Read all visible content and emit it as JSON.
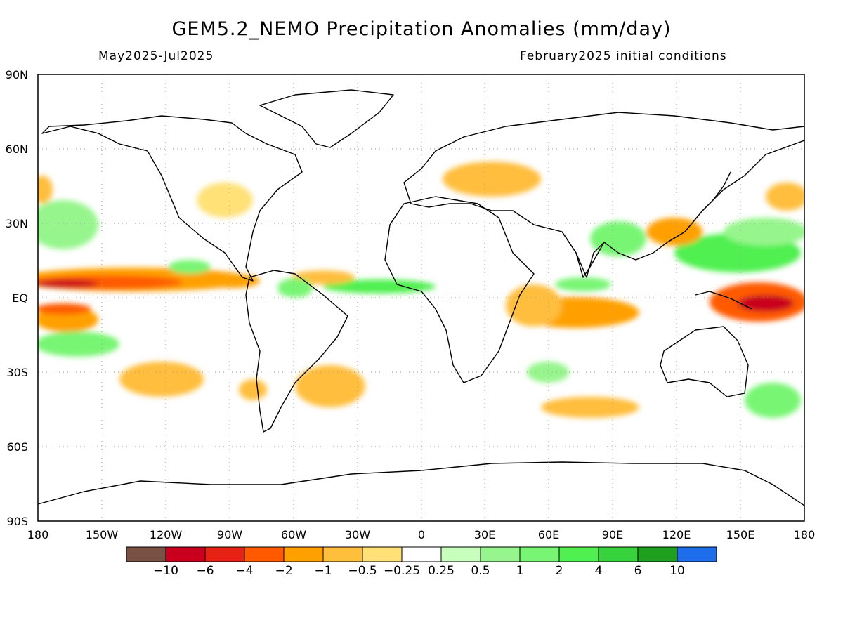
{
  "header": {
    "title": "GEM5.2_NEMO Precipitation Anomalies (mm/day)",
    "period": "May2025-Jul2025",
    "init": "February2025 initial conditions"
  },
  "map": {
    "lat_ticks": [
      "90N",
      "60N",
      "30N",
      "EQ",
      "30S",
      "60S",
      "90S"
    ],
    "lon_ticks": [
      "180",
      "150W",
      "120W",
      "90W",
      "60W",
      "30W",
      "0",
      "30E",
      "60E",
      "90E",
      "120E",
      "150E",
      "180"
    ],
    "lon_range": [
      -180,
      180
    ],
    "lat_range": [
      -90,
      90
    ],
    "grid": true,
    "projection": "cylindrical equidistant"
  },
  "colorbar": {
    "colors": [
      "#7a5245",
      "#c8001e",
      "#e62214",
      "#ff5a00",
      "#ffa000",
      "#ffbe3c",
      "#ffe178",
      "#ffffff",
      "#c8ffbe",
      "#96f58c",
      "#78f573",
      "#50f050",
      "#37d23c",
      "#1ea01e",
      "#1e6eeb"
    ],
    "labels": [
      "-10",
      "-6",
      "-4",
      "-2",
      "-1",
      "-0.5",
      "-0.25",
      "0.25",
      "0.5",
      "1",
      "2",
      "4",
      "6",
      "10"
    ]
  }
}
